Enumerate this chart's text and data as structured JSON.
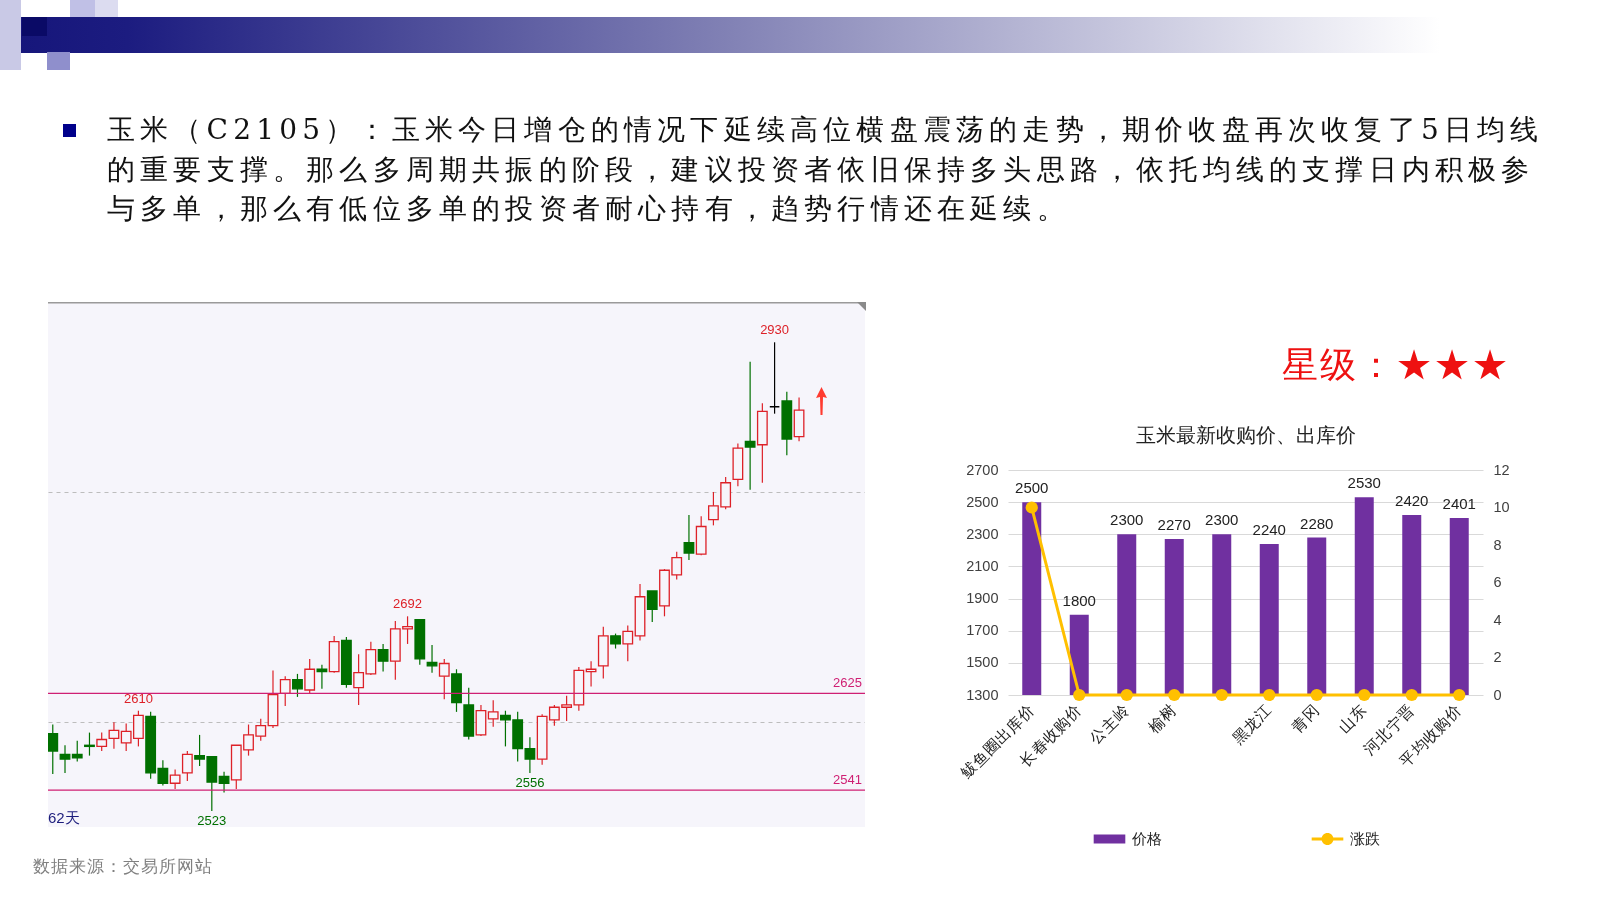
{
  "chart_data": [
    {
      "type": "candlestick",
      "title": "玉米（C2105）：玉米今日增仓的情况下延续高位横盘震荡的走势，期价收盘再次收复了5日均线的重要支撑。那么多周期共振的阶段，建议投资者依旧保持多头思路，依托均线的支撑日内积极参与多单，那么有低位多单的投资者耐心持有，趋势行情还在延续。",
      "categories": [
        null,
        null,
        null,
        null,
        null,
        null,
        null,
        null,
        null,
        null,
        null,
        null,
        null,
        null,
        null,
        null,
        null,
        null,
        null,
        null,
        null,
        null,
        null,
        null,
        null,
        null,
        null,
        null,
        null,
        null,
        null,
        null,
        null,
        null,
        null,
        null,
        null,
        null,
        null,
        null,
        null,
        null,
        null,
        null,
        null,
        null,
        null,
        null,
        null,
        null,
        null,
        null,
        null,
        null,
        null,
        null,
        null,
        null,
        null,
        null,
        null,
        null
      ],
      "ohlc": [
        [
          2590,
          2598,
          2555,
          2575
        ],
        [
          2572,
          2580,
          2556,
          2568
        ],
        [
          2572,
          2584,
          2566,
          2569
        ],
        [
          2580,
          2591,
          2571,
          2579
        ],
        [
          2579,
          2591,
          2575,
          2585
        ],
        [
          2586,
          2600,
          2577,
          2593
        ],
        [
          2582,
          2599,
          2575,
          2592
        ],
        [
          2586,
          2610,
          2579,
          2606
        ],
        [
          2605,
          2609,
          2551,
          2556
        ],
        [
          2560,
          2567,
          2545,
          2547
        ],
        [
          2547,
          2559,
          2542,
          2554
        ],
        [
          2556,
          2575,
          2549,
          2572
        ],
        [
          2571,
          2589,
          2562,
          2568
        ],
        [
          2570,
          2570,
          2523,
          2548
        ],
        [
          2553,
          2557,
          2539,
          2547
        ],
        [
          2550,
          2580,
          2542,
          2580
        ],
        [
          2576,
          2598,
          2571,
          2589
        ],
        [
          2588,
          2603,
          2584,
          2597
        ],
        [
          2597,
          2645,
          2595,
          2624
        ],
        [
          2625,
          2640,
          2614,
          2637
        ],
        [
          2637,
          2642,
          2622,
          2629
        ],
        [
          2628,
          2655,
          2625,
          2646
        ],
        [
          2646,
          2650,
          2629,
          2644
        ],
        [
          2644,
          2675,
          2643,
          2670
        ],
        [
          2671,
          2674,
          2630,
          2633
        ],
        [
          2630,
          2659,
          2615,
          2643
        ],
        [
          2642,
          2670,
          2641,
          2663
        ],
        [
          2663,
          2668,
          2644,
          2653
        ],
        [
          2653,
          2688,
          2637,
          2681
        ],
        [
          2681,
          2692,
          2668,
          2683
        ],
        [
          2689,
          2689,
          2650,
          2655
        ],
        [
          2652,
          2667,
          2643,
          2649
        ],
        [
          2640,
          2655,
          2620,
          2651
        ],
        [
          2642,
          2646,
          2609,
          2617
        ],
        [
          2615,
          2630,
          2585,
          2588
        ],
        [
          2589,
          2615,
          2588,
          2610
        ],
        [
          2603,
          2619,
          2596,
          2609
        ],
        [
          2606,
          2610,
          2579,
          2602
        ],
        [
          2602,
          2609,
          2566,
          2577
        ],
        [
          2577,
          2587,
          2556,
          2568
        ],
        [
          2568,
          2607,
          2563,
          2605
        ],
        [
          2602,
          2615,
          2597,
          2613
        ],
        [
          2613,
          2623,
          2601,
          2615
        ],
        [
          2615,
          2648,
          2610,
          2645
        ],
        [
          2644,
          2653,
          2631,
          2646
        ],
        [
          2649,
          2683,
          2638,
          2675
        ],
        [
          2675,
          2677,
          2664,
          2668
        ],
        [
          2668,
          2684,
          2653,
          2679
        ],
        [
          2675,
          2720,
          2671,
          2709
        ],
        [
          2714,
          2714,
          2687,
          2698
        ],
        [
          2701,
          2733,
          2692,
          2732
        ],
        [
          2728,
          2748,
          2724,
          2743
        ],
        [
          2756,
          2780,
          2741,
          2747
        ],
        [
          2746,
          2779,
          2745,
          2770
        ],
        [
          2776,
          2800,
          2771,
          2788
        ],
        [
          2787,
          2813,
          2785,
          2808
        ],
        [
          2811,
          2842,
          2805,
          2838
        ],
        [
          2844,
          2913,
          2802,
          2839
        ],
        [
          2841,
          2877,
          2808,
          2870
        ],
        [
          2874,
          2930,
          2868,
          2874
        ],
        [
          2879,
          2887,
          2832,
          2846
        ],
        [
          2848,
          2882,
          2844,
          2871
        ]
      ],
      "colors": [
        "#007000",
        "#007000",
        "#007000",
        "#007000",
        "#dd2128",
        "#dd2128",
        "#dd2128",
        "#dd2128",
        "#007000",
        "#007000",
        "#dd2128",
        "#dd2128",
        "#007000",
        "#007000",
        "#007000",
        "#dd2128",
        "#dd2128",
        "#dd2128",
        "#dd2128",
        "#dd2128",
        "#007000",
        "#dd2128",
        "#007000",
        "#dd2128",
        "#007000",
        "#dd2128",
        "#dd2128",
        "#007000",
        "#dd2128",
        "#dd2128",
        "#007000",
        "#007000",
        "#dd2128",
        "#007000",
        "#007000",
        "#dd2128",
        "#dd2128",
        "#007000",
        "#007000",
        "#007000",
        "#dd2128",
        "#dd2128",
        "#dd2128",
        "#dd2128",
        "#dd2128",
        "#dd2128",
        "#007000",
        "#dd2128",
        "#dd2128",
        "#007000",
        "#dd2128",
        "#dd2128",
        "#007000",
        "#dd2128",
        "#dd2128",
        "#dd2128",
        "#dd2128",
        "#007000",
        "#dd2128",
        "#000000",
        "#007000",
        "#dd2128"
      ],
      "value_labels": [
        null,
        null,
        null,
        null,
        null,
        null,
        null,
        "2610",
        null,
        null,
        null,
        null,
        null,
        "2523",
        null,
        null,
        null,
        null,
        null,
        null,
        null,
        null,
        null,
        null,
        null,
        null,
        null,
        null,
        null,
        "2692",
        null,
        null,
        null,
        null,
        null,
        null,
        null,
        null,
        null,
        "2556",
        null,
        null,
        null,
        null,
        null,
        null,
        null,
        null,
        null,
        null,
        null,
        null,
        null,
        null,
        null,
        null,
        null,
        null,
        null,
        "2930",
        null,
        null
      ],
      "ylim": [
        2509,
        2965
      ],
      "yticks": [
        {
          "value": 2600,
          "label": null
        },
        {
          "value": 2800,
          "label": null
        }
      ],
      "grid": "y",
      "ref_lines": [
        {
          "axis": "y",
          "value": 2625,
          "label": "2625",
          "color": "#cf1f73"
        },
        {
          "axis": "y",
          "value": 2541,
          "label": "2541",
          "color": "#cf1f73"
        }
      ],
      "annotations": [
        "62天",
        "数据来源：交易所网站"
      ]
    },
    {
      "type": "bar",
      "title": "玉米最新收购价、出库价",
      "categories": [
        "鲅鱼圈出库价",
        "长春收购价",
        "公主岭",
        "榆树",
        null,
        "黑龙江",
        "青冈",
        "山东",
        "河北宁晋",
        "平均收购价"
      ],
      "series": [
        {
          "name": "价格",
          "type": "bar",
          "color": "#7030a0",
          "values": [
            2500,
            1800,
            2300,
            2270,
            2300,
            2240,
            2280,
            2530,
            2420,
            2401
          ],
          "value_labels": [
            "2500",
            "1800",
            "2300",
            "2270",
            "2300",
            "2240",
            "2280",
            "2530",
            "2420",
            "2401"
          ]
        },
        {
          "name": "涨跌",
          "type": "line",
          "axis": "y2",
          "color": "#ffc000",
          "values": [
            10,
            0,
            0,
            0,
            0,
            0,
            0,
            0,
            0,
            0
          ]
        }
      ],
      "ylim": [
        1300,
        2700
      ],
      "yticks": [
        1300,
        1500,
        1700,
        1900,
        2100,
        2300,
        2500,
        2700
      ],
      "y2lim": [
        0,
        12
      ],
      "y2ticks": [
        0,
        2,
        4,
        6,
        8,
        10,
        12
      ],
      "grid": "y",
      "legend": "bottom",
      "marker": "circle",
      "annotations": [
        "星级：★★★"
      ]
    }
  ]
}
